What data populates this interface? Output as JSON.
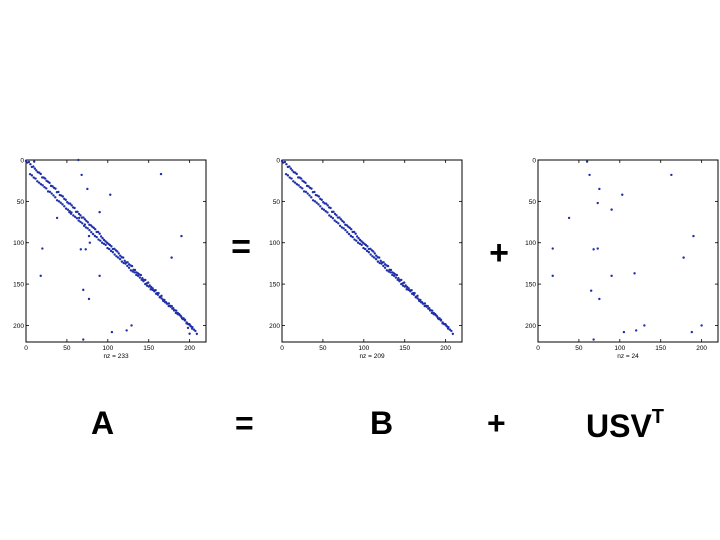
{
  "colors": {
    "dot": "#1f2fa8",
    "axis": "#000000"
  },
  "plots": [
    {
      "id": "A",
      "x_range": [
        0,
        220
      ],
      "y_range": [
        0,
        220
      ],
      "x_ticks": [
        "0",
        "50",
        "100",
        "150",
        "200"
      ],
      "y_ticks": [
        "0",
        "50",
        "100",
        "150",
        "200"
      ],
      "nz_label": "nz = 233",
      "band_main": true,
      "band_second": true,
      "scatter": [
        [
          64,
          0
        ],
        [
          10,
          2
        ],
        [
          68,
          18
        ],
        [
          165,
          17
        ],
        [
          75,
          35
        ],
        [
          103,
          42
        ],
        [
          38,
          70
        ],
        [
          72,
          78
        ],
        [
          90,
          63
        ],
        [
          53,
          63
        ],
        [
          55,
          65
        ],
        [
          65,
          70
        ],
        [
          77,
          92
        ],
        [
          78,
          100
        ],
        [
          20,
          107
        ],
        [
          67,
          108
        ],
        [
          73,
          108
        ],
        [
          190,
          92
        ],
        [
          178,
          118
        ],
        [
          90,
          140
        ],
        [
          18,
          140
        ],
        [
          70,
          157
        ],
        [
          77,
          168
        ],
        [
          105,
          208
        ],
        [
          123,
          206
        ],
        [
          129,
          200
        ],
        [
          70,
          217
        ],
        [
          198,
          203
        ],
        [
          200,
          210
        ]
      ]
    },
    {
      "id": "B",
      "x_range": [
        0,
        220
      ],
      "y_range": [
        0,
        220
      ],
      "x_ticks": [
        "0",
        "50",
        "100",
        "150",
        "200"
      ],
      "y_ticks": [
        "0",
        "50",
        "100",
        "150",
        "200"
      ],
      "nz_label": "nz = 209",
      "band_main": true,
      "band_second": true,
      "scatter": []
    },
    {
      "id": "USV",
      "x_range": [
        0,
        220
      ],
      "y_range": [
        0,
        220
      ],
      "x_ticks": [
        "0",
        "50",
        "100",
        "150",
        "200"
      ],
      "y_ticks": [
        "0",
        "50",
        "100",
        "150",
        "200"
      ],
      "nz_label": "nz = 24",
      "band_main": false,
      "band_second": false,
      "scatter": [
        [
          60,
          2
        ],
        [
          63,
          18
        ],
        [
          75,
          35
        ],
        [
          163,
          18
        ],
        [
          73,
          52
        ],
        [
          103,
          42
        ],
        [
          38,
          70
        ],
        [
          90,
          60
        ],
        [
          18,
          107
        ],
        [
          68,
          108
        ],
        [
          73,
          107
        ],
        [
          190,
          92
        ],
        [
          178,
          118
        ],
        [
          90,
          140
        ],
        [
          118,
          137
        ],
        [
          18,
          140
        ],
        [
          65,
          158
        ],
        [
          75,
          168
        ],
        [
          105,
          208
        ],
        [
          120,
          206
        ],
        [
          130,
          200
        ],
        [
          68,
          217
        ],
        [
          188,
          208
        ],
        [
          200,
          200
        ]
      ]
    }
  ],
  "operators": {
    "eq_top": "=",
    "plus_top": "+"
  },
  "equation": {
    "a": "A",
    "eq": "=",
    "b": "B",
    "plus": "+",
    "usv": "USV",
    "sup": "T"
  }
}
